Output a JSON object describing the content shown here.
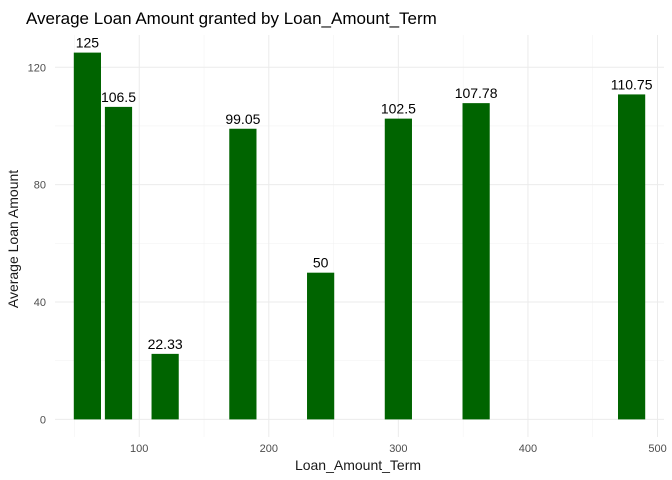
{
  "chart_data": {
    "type": "bar",
    "title": "Average Loan Amount granted by Loan_Amount_Term",
    "xlabel": "Loan_Amount_Term",
    "ylabel": "Average Loan Amount",
    "xlim": [
      35,
      505
    ],
    "ylim": [
      -6,
      131
    ],
    "x_ticks": [
      100,
      200,
      300,
      400,
      500
    ],
    "y_ticks": [
      0,
      40,
      80,
      120
    ],
    "bar_width": 21,
    "bar_color": "#006400",
    "grid": true,
    "x": [
      60,
      84,
      120,
      180,
      240,
      300,
      360,
      480
    ],
    "values": [
      125,
      106.5,
      22.33,
      99.05,
      50,
      102.5,
      107.78,
      110.75
    ],
    "labels": [
      "125",
      "106.5",
      "22.33",
      "99.05",
      "50",
      "102.5",
      "107.78",
      "110.75"
    ]
  }
}
